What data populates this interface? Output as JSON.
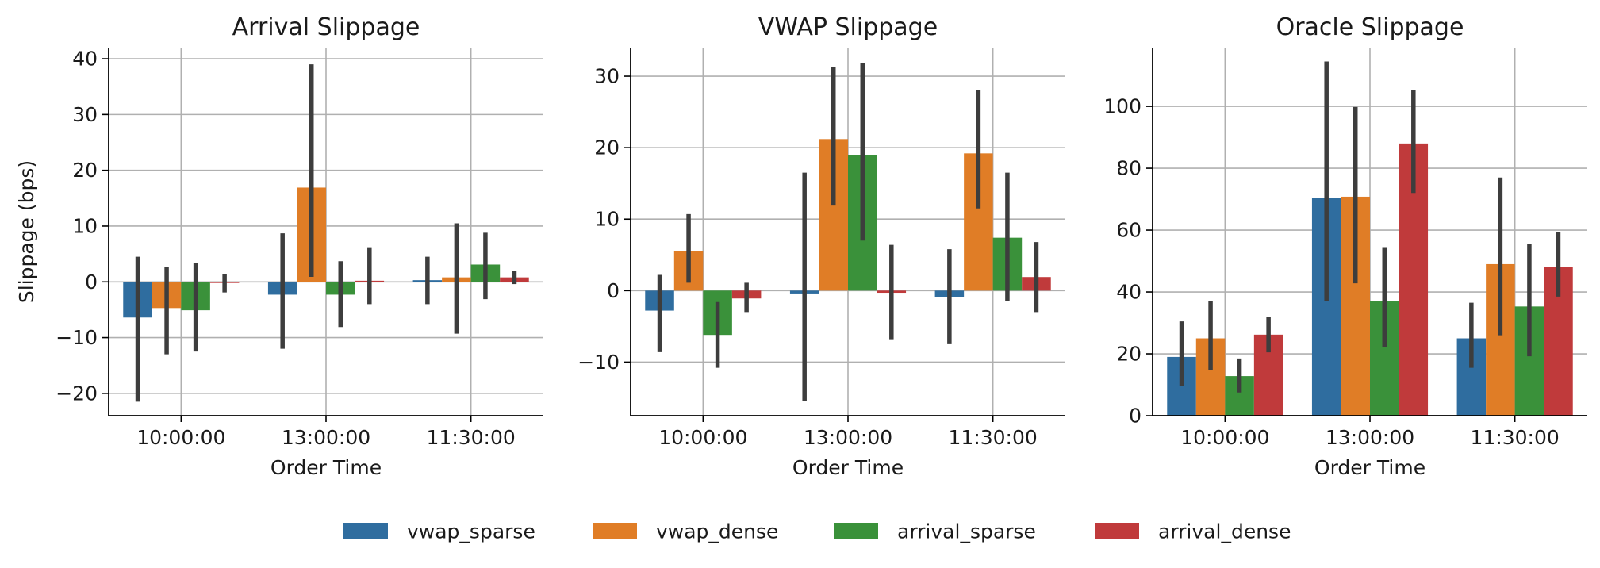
{
  "legend": {
    "series": [
      "vwap_sparse",
      "vwap_dense",
      "arrival_sparse",
      "arrival_dense"
    ],
    "colors": [
      "#2f6d9f",
      "#e07d26",
      "#3a913a",
      "#c03a3b"
    ]
  },
  "chart_data": [
    {
      "type": "bar",
      "title": "Arrival Slippage",
      "xlabel": "Order Time",
      "ylabel": "Slippage (bps)",
      "categories": [
        "10:00:00",
        "13:00:00",
        "11:30:00"
      ],
      "ylim": [
        -24,
        42
      ],
      "yticks": [
        -20,
        -10,
        0,
        10,
        20,
        30,
        40
      ],
      "ytick_labels": [
        "−20",
        "−10",
        "0",
        "10",
        "20",
        "30",
        "40"
      ],
      "grid": true,
      "series": [
        {
          "name": "vwap_sparse",
          "values": [
            -6.4,
            -2.3,
            0.3
          ],
          "errors": [
            [
              -21.5,
              4.5
            ],
            [
              -12,
              8.7
            ],
            [
              -4,
              4.5
            ]
          ]
        },
        {
          "name": "vwap_dense",
          "values": [
            -4.7,
            16.9,
            0.8
          ],
          "errors": [
            [
              -13,
              2.7
            ],
            [
              0.9,
              39
            ],
            [
              -9.3,
              10.5
            ]
          ]
        },
        {
          "name": "arrival_sparse",
          "values": [
            -5.1,
            -2.3,
            3.1
          ],
          "errors": [
            [
              -12.5,
              3.4
            ],
            [
              -8.1,
              3.7
            ],
            [
              -3.1,
              8.8
            ]
          ]
        },
        {
          "name": "arrival_dense",
          "values": [
            -0.2,
            0.2,
            0.8
          ],
          "errors": [
            [
              -1.9,
              1.4
            ],
            [
              -4,
              6.2
            ],
            [
              -0.4,
              1.9
            ]
          ]
        }
      ]
    },
    {
      "type": "bar",
      "title": "VWAP Slippage",
      "xlabel": "Order Time",
      "ylabel": "",
      "categories": [
        "10:00:00",
        "13:00:00",
        "11:30:00"
      ],
      "ylim": [
        -17.5,
        34
      ],
      "yticks": [
        -10,
        0,
        10,
        20,
        30
      ],
      "ytick_labels": [
        "−10",
        "0",
        "10",
        "20",
        "30"
      ],
      "grid": true,
      "series": [
        {
          "name": "vwap_sparse",
          "values": [
            -2.8,
            -0.4,
            -0.9
          ],
          "errors": [
            [
              -8.6,
              2.2
            ],
            [
              -15.5,
              16.5
            ],
            [
              -7.5,
              5.8
            ]
          ]
        },
        {
          "name": "vwap_dense",
          "values": [
            5.5,
            21.2,
            19.2
          ],
          "errors": [
            [
              1.1,
              10.7
            ],
            [
              11.9,
              31.3
            ],
            [
              11.5,
              28.1
            ]
          ]
        },
        {
          "name": "arrival_sparse",
          "values": [
            -6.2,
            19.0,
            7.4
          ],
          "errors": [
            [
              -10.8,
              -1.6
            ],
            [
              7.0,
              31.8
            ],
            [
              -1.5,
              16.5
            ]
          ]
        },
        {
          "name": "arrival_dense",
          "values": [
            -1.1,
            -0.3,
            1.9
          ],
          "errors": [
            [
              -3.0,
              1.1
            ],
            [
              -6.8,
              6.4
            ],
            [
              -3.0,
              6.8
            ]
          ]
        }
      ]
    },
    {
      "type": "bar",
      "title": "Oracle Slippage",
      "xlabel": "Order Time",
      "ylabel": "",
      "categories": [
        "10:00:00",
        "13:00:00",
        "11:30:00"
      ],
      "ylim": [
        0,
        119
      ],
      "yticks": [
        0,
        20,
        40,
        60,
        80,
        100
      ],
      "ytick_labels": [
        "0",
        "20",
        "40",
        "60",
        "80",
        "100"
      ],
      "grid": true,
      "series": [
        {
          "name": "vwap_sparse",
          "values": [
            19,
            70.5,
            25
          ],
          "errors": [
            [
              9.7,
              30.5
            ],
            [
              37,
              114.5
            ],
            [
              15.5,
              36.5
            ]
          ]
        },
        {
          "name": "vwap_dense",
          "values": [
            25,
            70.8,
            49
          ],
          "errors": [
            [
              14.7,
              37
            ],
            [
              42.8,
              99.8
            ],
            [
              26,
              77
            ]
          ]
        },
        {
          "name": "arrival_sparse",
          "values": [
            12.8,
            37,
            35.3
          ],
          "errors": [
            [
              7.5,
              18.5
            ],
            [
              22.3,
              54.5
            ],
            [
              19.2,
              55.5
            ]
          ]
        },
        {
          "name": "arrival_dense",
          "values": [
            26.2,
            88,
            48.2
          ],
          "errors": [
            [
              20.5,
              32
            ],
            [
              72,
              105.3
            ],
            [
              38.5,
              59.5
            ]
          ]
        }
      ]
    }
  ]
}
